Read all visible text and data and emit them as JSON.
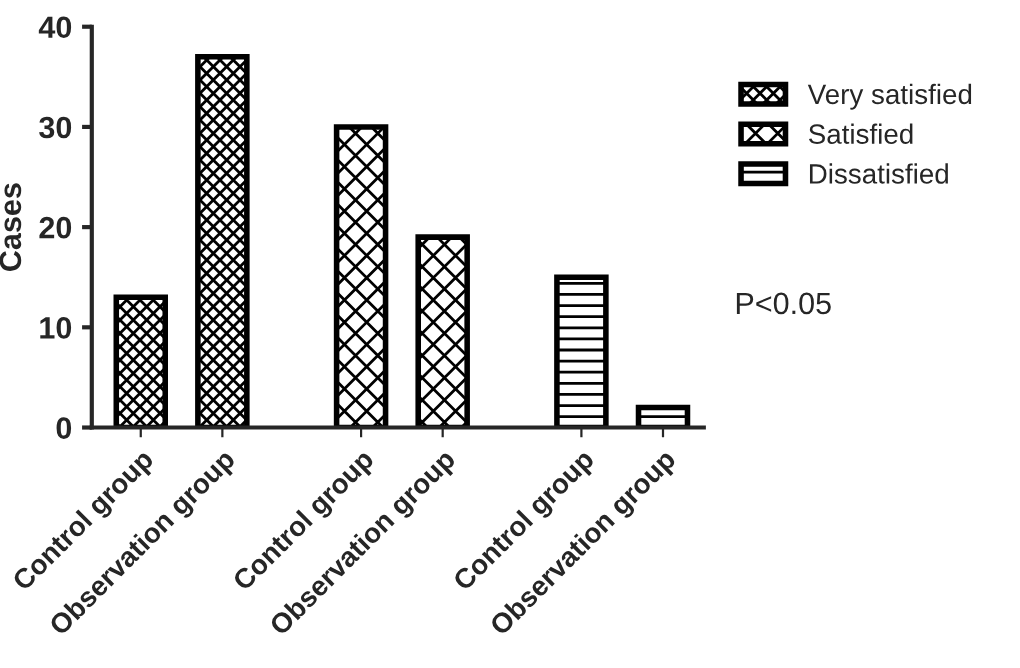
{
  "chart_data": {
    "type": "bar",
    "ylabel": "Cases",
    "categories": [
      "Control group",
      "Observation group",
      "Control group",
      "Observation group",
      "Control group",
      "Observation group"
    ],
    "series": [
      {
        "name": "Very satisfied",
        "color": "#000000",
        "values": [
          13,
          37,
          null,
          null,
          null,
          null
        ]
      },
      {
        "name": "Satisfied",
        "color": "#000000",
        "values": [
          null,
          null,
          30,
          19,
          null,
          null
        ]
      },
      {
        "name": "Dissatisfied",
        "color": "#000000",
        "values": [
          null,
          null,
          null,
          null,
          15,
          2
        ]
      }
    ],
    "ylim": [
      0,
      40
    ],
    "yticks": [
      0,
      10,
      20,
      30,
      40
    ],
    "grid": false,
    "legend": "top right",
    "annotations": [
      "P<0.05"
    ]
  }
}
